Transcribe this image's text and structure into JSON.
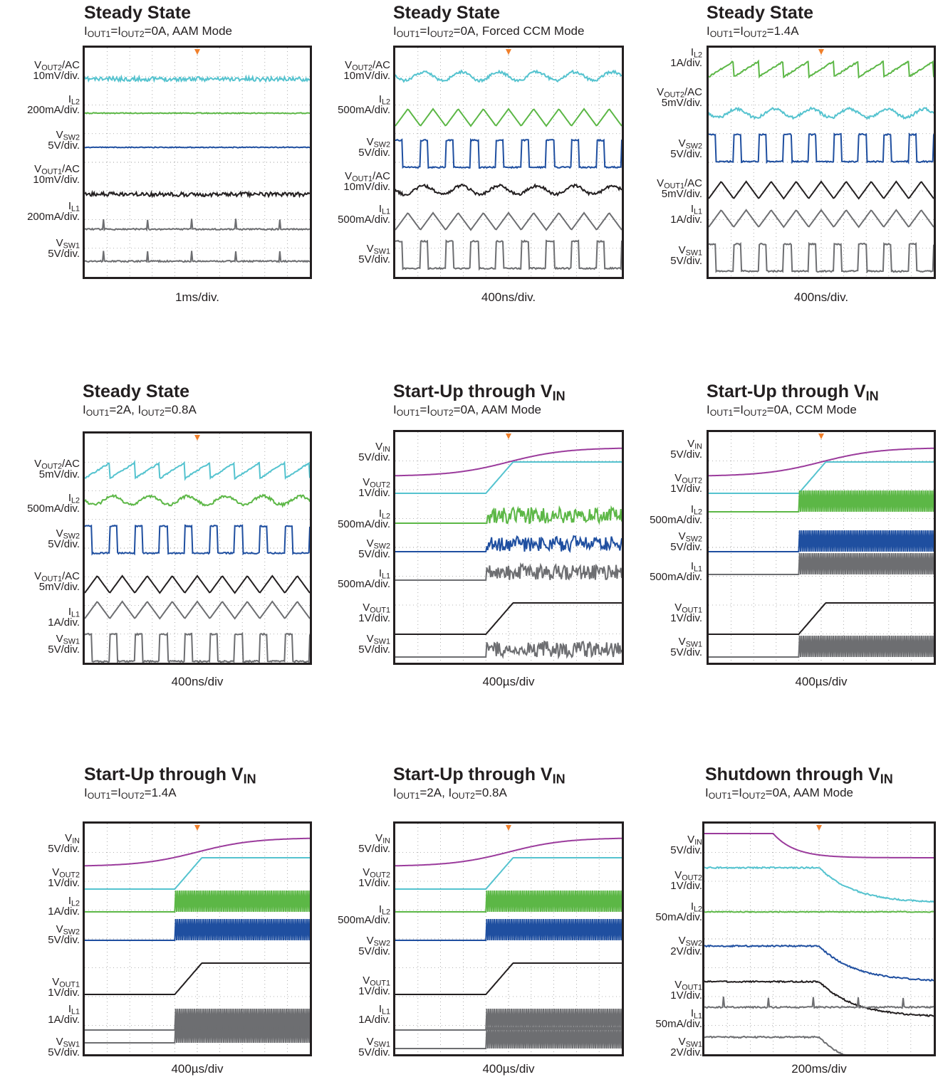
{
  "colors": {
    "vin": "#9b3b9c",
    "vout2": "#55c3cf",
    "il2": "#5cb746",
    "vsw2": "#1f4fa0",
    "vout1": "#231f20",
    "il1": "#6d6e71",
    "vsw1": "#6d6e71",
    "grid": "#9a9a9a"
  },
  "panels": [
    {
      "title": "Steady State",
      "title_sub": "",
      "subtitle_parts": [
        "I",
        "OUT1",
        "=I",
        "OUT2",
        "=0A, AAM Mode"
      ],
      "timebase": "1ms/div.",
      "chart_data": {
        "type": "line",
        "title": "Steady State",
        "x_div": "1ms/div.",
        "series": [
          {
            "name": "VOUT2/AC",
            "scale": "10mV/div.",
            "shape": "flat-noisy"
          },
          {
            "name": "IL2",
            "scale": "200mA/div.",
            "shape": "flat"
          },
          {
            "name": "VSW2",
            "scale": "5V/div.",
            "shape": "flat"
          },
          {
            "name": "VOUT1/AC",
            "scale": "10mV/div.",
            "shape": "flat-noisy"
          },
          {
            "name": "IL1",
            "scale": "200mA/div.",
            "shape": "flat-with-spikes"
          },
          {
            "name": "VSW1",
            "scale": "5V/div.",
            "shape": "flat-with-spikes"
          }
        ]
      }
    },
    {
      "title": "Steady State",
      "title_sub": "",
      "subtitle_parts": [
        "I",
        "OUT1",
        "=I",
        "OUT2",
        "=0A, Forced CCM Mode"
      ],
      "timebase": "400ns/div.",
      "chart_data": {
        "type": "line",
        "title": "Steady State",
        "x_div": "400ns/div.",
        "series": [
          {
            "name": "VOUT2/AC",
            "scale": "10mV/div.",
            "shape": "ripple"
          },
          {
            "name": "IL2",
            "scale": "500mA/div.",
            "shape": "triangle"
          },
          {
            "name": "VSW2",
            "scale": "5V/div.",
            "shape": "square"
          },
          {
            "name": "VOUT1/AC",
            "scale": "10mV/div.",
            "shape": "ripple"
          },
          {
            "name": "IL1",
            "scale": "500mA/div.",
            "shape": "triangle"
          },
          {
            "name": "VSW1",
            "scale": "5V/div.",
            "shape": "square"
          }
        ]
      }
    },
    {
      "title": "Steady State",
      "title_sub": "",
      "subtitle_parts": [
        "I",
        "OUT1",
        "=I",
        "OUT2",
        "=1.4A"
      ],
      "timebase": "400ns/div.",
      "chart_data": {
        "type": "line",
        "title": "Steady State",
        "x_div": "400ns/div.",
        "series": [
          {
            "name": "IL2",
            "scale": "1A/div.",
            "shape": "sawtooth"
          },
          {
            "name": "VOUT2/AC",
            "scale": "5mV/div.",
            "shape": "ripple"
          },
          {
            "name": "VSW2",
            "scale": "5V/div.",
            "shape": "square"
          },
          {
            "name": "VOUT1/AC",
            "scale": "5mV/div.",
            "shape": "triangle"
          },
          {
            "name": "IL1",
            "scale": "1A/div.",
            "shape": "triangle"
          },
          {
            "name": "VSW1",
            "scale": "5V/div.",
            "shape": "square"
          }
        ]
      }
    },
    {
      "title": "Steady State",
      "title_sub": "",
      "subtitle_parts": [
        "I",
        "OUT1",
        "=2A, I",
        "OUT2",
        "=0.8A"
      ],
      "timebase": "400ns/div",
      "chart_data": {
        "type": "line",
        "title": "Steady State",
        "x_div": "400ns/div",
        "series": [
          {
            "name": "VOUT2/AC",
            "scale": "5mV/div.",
            "shape": "sawtooth"
          },
          {
            "name": "IL2",
            "scale": "500mA/div.",
            "shape": "ripple"
          },
          {
            "name": "VSW2",
            "scale": "5V/div.",
            "shape": "square"
          },
          {
            "name": "VOUT1/AC",
            "scale": "5mV/div.",
            "shape": "triangle"
          },
          {
            "name": "IL1",
            "scale": "1A/div.",
            "shape": "triangle"
          },
          {
            "name": "VSW1",
            "scale": "5V/div.",
            "shape": "square"
          }
        ]
      }
    },
    {
      "title": "Start-Up through V",
      "title_sub": "IN",
      "subtitle_parts": [
        "I",
        "OUT1",
        "=I",
        "OUT2",
        "=0A, AAM Mode"
      ],
      "timebase": "400µs/div",
      "chart_data": {
        "type": "line",
        "title": "Start-Up through VIN",
        "x_div": "400µs/div",
        "series": [
          {
            "name": "VIN",
            "scale": "5V/div.",
            "shape": "rise"
          },
          {
            "name": "VOUT2",
            "scale": "1V/div.",
            "shape": "ramp"
          },
          {
            "name": "IL2",
            "scale": "500mA/div.",
            "shape": "burst"
          },
          {
            "name": "VSW2",
            "scale": "5V/div.",
            "shape": "burst"
          },
          {
            "name": "IL1",
            "scale": "500mA/div.",
            "shape": "burst"
          },
          {
            "name": "VOUT1",
            "scale": "1V/div.",
            "shape": "ramp"
          },
          {
            "name": "VSW1",
            "scale": "5V/div.",
            "shape": "burst"
          }
        ]
      }
    },
    {
      "title": "Start-Up through V",
      "title_sub": "IN",
      "subtitle_parts": [
        "I",
        "OUT1",
        "=I",
        "OUT2",
        "=0A, CCM Mode"
      ],
      "timebase": "400µs/div",
      "chart_data": {
        "type": "line",
        "title": "Start-Up through VIN",
        "x_div": "400µs/div",
        "series": [
          {
            "name": "VIN",
            "scale": "5V/div.",
            "shape": "rise"
          },
          {
            "name": "VOUT2",
            "scale": "1V/div.",
            "shape": "ramp"
          },
          {
            "name": "IL2",
            "scale": "500mA/div.",
            "shape": "band"
          },
          {
            "name": "VSW2",
            "scale": "5V/div.",
            "shape": "band"
          },
          {
            "name": "IL1",
            "scale": "500mA/div.",
            "shape": "band"
          },
          {
            "name": "VOUT1",
            "scale": "1V/div.",
            "shape": "ramp"
          },
          {
            "name": "VSW1",
            "scale": "5V/div.",
            "shape": "band"
          }
        ]
      }
    },
    {
      "title": "Start-Up through V",
      "title_sub": "IN",
      "subtitle_parts": [
        "I",
        "OUT1",
        "=I",
        "OUT2",
        "=1.4A"
      ],
      "timebase": "400µs/div",
      "chart_data": {
        "type": "line",
        "title": "Start-Up through VIN",
        "x_div": "400µs/div",
        "series": [
          {
            "name": "VIN",
            "scale": "5V/div.",
            "shape": "rise"
          },
          {
            "name": "VOUT2",
            "scale": "1V/div.",
            "shape": "ramp"
          },
          {
            "name": "IL2",
            "scale": "1A/div.",
            "shape": "band"
          },
          {
            "name": "VSW2",
            "scale": "5V/div.",
            "shape": "band"
          },
          {
            "name": "VOUT1",
            "scale": "1V/div.",
            "shape": "ramp"
          },
          {
            "name": "IL1",
            "scale": "1A/div.",
            "shape": "band"
          },
          {
            "name": "VSW1",
            "scale": "5V/div.",
            "shape": "band"
          }
        ]
      }
    },
    {
      "title": "Start-Up through V",
      "title_sub": "IN",
      "subtitle_parts": [
        "I",
        "OUT1",
        "=2A, I",
        "OUT2",
        "=0.8A"
      ],
      "timebase": "400µs/div",
      "chart_data": {
        "type": "line",
        "title": "Start-Up through VIN",
        "x_div": "400µs/div",
        "series": [
          {
            "name": "VIN",
            "scale": "5V/div.",
            "shape": "rise"
          },
          {
            "name": "VOUT2",
            "scale": "1V/div.",
            "shape": "ramp"
          },
          {
            "name": "IL2",
            "scale": "500mA/div.",
            "shape": "band"
          },
          {
            "name": "VSW2",
            "scale": "5V/div.",
            "shape": "band"
          },
          {
            "name": "VOUT1",
            "scale": "1V/div.",
            "shape": "ramp"
          },
          {
            "name": "IL1",
            "scale": "1A/div.",
            "shape": "band"
          },
          {
            "name": "VSW1",
            "scale": "5V/div.",
            "shape": "band"
          }
        ]
      }
    },
    {
      "title": "Shutdown through V",
      "title_sub": "IN",
      "subtitle_parts": [
        "I",
        "OUT1",
        "=I",
        "OUT2",
        "=0A, AAM Mode"
      ],
      "timebase": "200ms/div",
      "chart_data": {
        "type": "line",
        "title": "Shutdown through VIN",
        "x_div": "200ms/div",
        "series": [
          {
            "name": "VIN",
            "scale": "5V/div.",
            "shape": "fall"
          },
          {
            "name": "VOUT2",
            "scale": "1V/div.",
            "shape": "decay"
          },
          {
            "name": "IL2",
            "scale": "50mA/div.",
            "shape": "flat"
          },
          {
            "name": "VSW2",
            "scale": "2V/div.",
            "shape": "decay"
          },
          {
            "name": "VOUT1",
            "scale": "1V/div.",
            "shape": "decay"
          },
          {
            "name": "IL1",
            "scale": "50mA/div.",
            "shape": "flat-with-spikes"
          },
          {
            "name": "VSW1",
            "scale": "2V/div.",
            "shape": "decay"
          }
        ]
      }
    }
  ]
}
